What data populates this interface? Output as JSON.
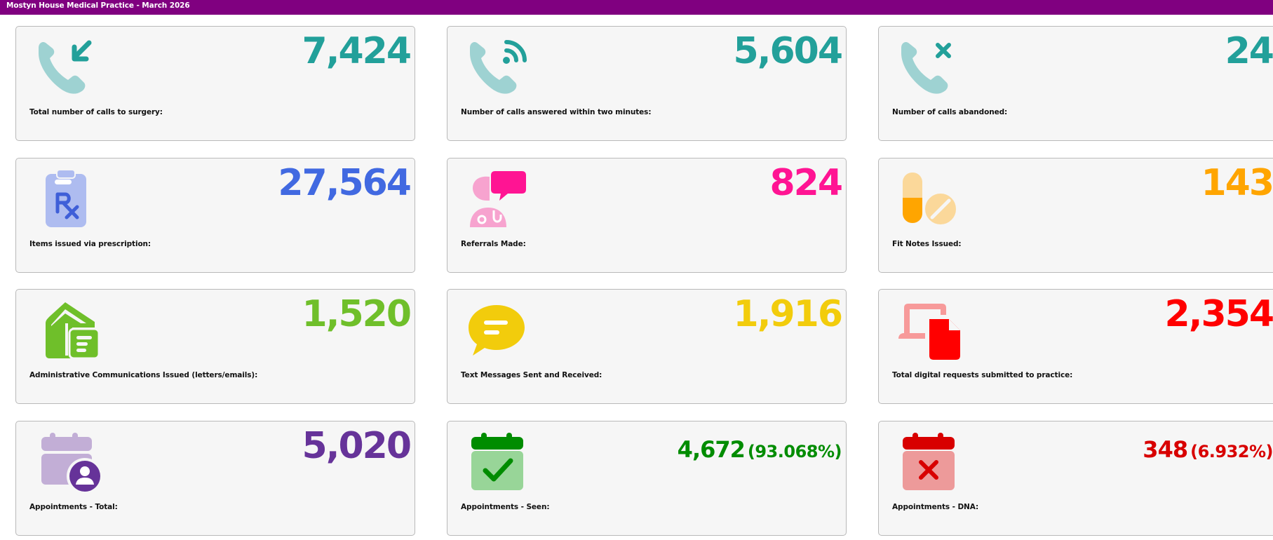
{
  "header": {
    "title": "Mostyn House Medical Practice - March 2026",
    "background": "#800080"
  },
  "cards": [
    {
      "label": "Total number of calls to surgery:",
      "value": "7,424",
      "color": "#22a09a",
      "icon": "phone-incoming-icon"
    },
    {
      "label": "Number of calls answered within two minutes:",
      "value": "5,604",
      "color": "#22a09a",
      "icon": "phone-signal-icon"
    },
    {
      "label": "Number of calls abandoned:",
      "value": "24",
      "color": "#22a09a",
      "icon": "phone-missed-icon"
    },
    {
      "label": "Items issued via prescription:",
      "value": "27,564",
      "color": "#4169e1",
      "icon": "prescription-icon"
    },
    {
      "label": "Referrals Made:",
      "value": "824",
      "color": "#ff1493",
      "icon": "doctor-chat-icon"
    },
    {
      "label": "Fit Notes Issued:",
      "value": "143",
      "color": "#ffa500",
      "icon": "pills-icon"
    },
    {
      "label": "Administrative Communications Issued (letters/emails):",
      "value": "1,520",
      "color": "#6fbf2a",
      "icon": "house-document-icon"
    },
    {
      "label": "Text Messages Sent and Received:",
      "value": "1,916",
      "color": "#ffd700",
      "icon": "message-icon"
    },
    {
      "label": "Total digital requests submitted to practice:",
      "value": "2,354",
      "color": "#ff0000",
      "icon": "device-file-icon"
    },
    {
      "label": "Appointments - Total:",
      "value": "5,020",
      "color": "#663399",
      "icon": "calendar-user-icon"
    },
    {
      "label": "Appointments - Seen:",
      "value": "4,672",
      "percent": "(93.068%)",
      "color": "#008c00",
      "icon": "calendar-check-icon"
    },
    {
      "label": "Appointments - DNA:",
      "value": "348",
      "percent": "(6.932%)",
      "color": "#d80000",
      "icon": "calendar-cross-icon"
    }
  ]
}
